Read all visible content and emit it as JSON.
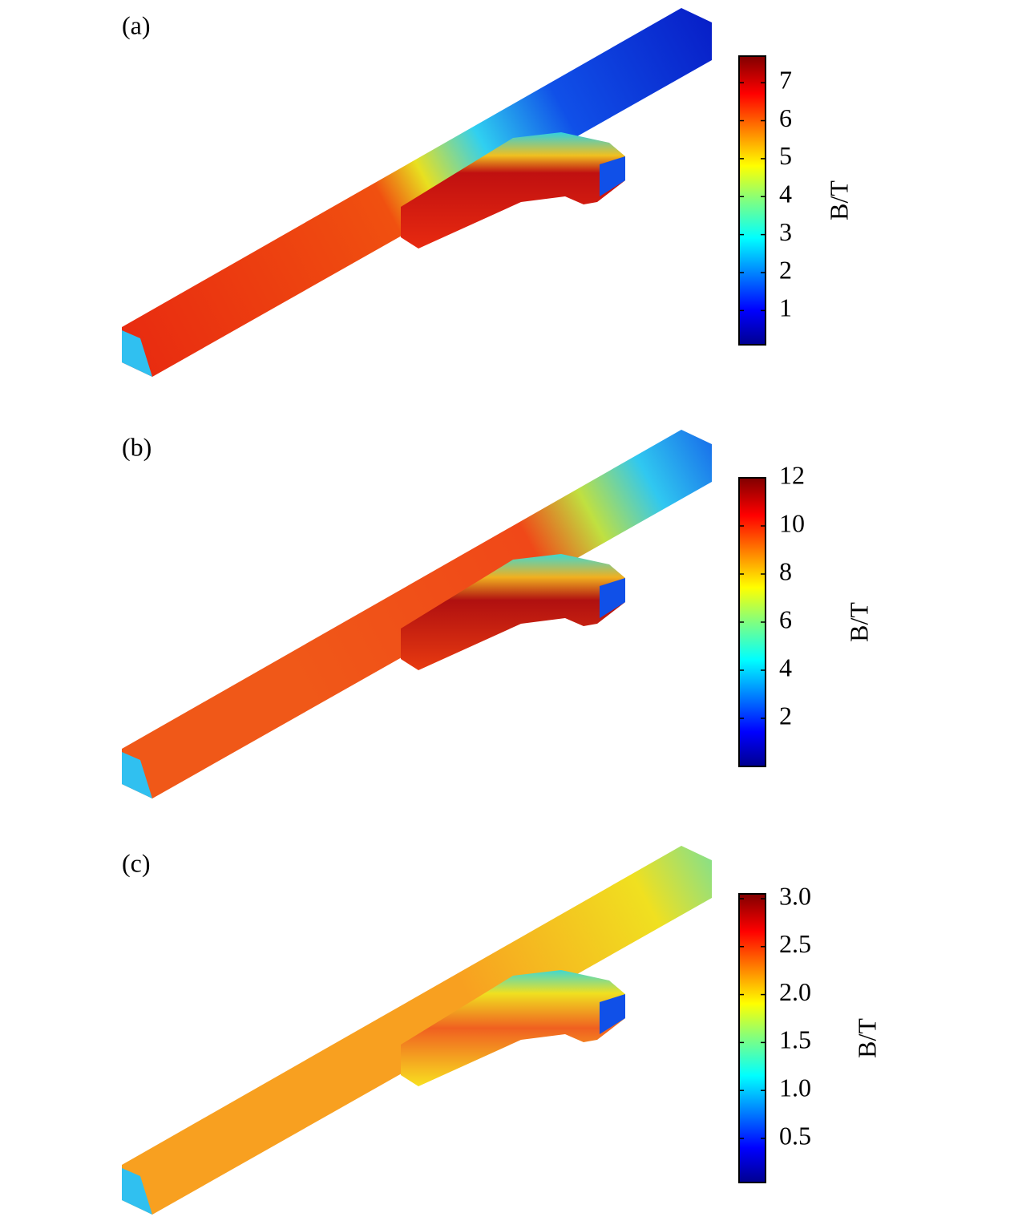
{
  "chart_data": [
    {
      "type": "colormap",
      "panel": "(a)",
      "colorbar_label": "B/T",
      "colormap": "jet",
      "clim": [
        0.1,
        7.7
      ],
      "cticks": [
        1,
        2,
        3,
        4,
        5,
        6,
        7
      ]
    },
    {
      "type": "colormap",
      "panel": "(b)",
      "colorbar_label": "B/T",
      "colormap": "jet",
      "clim": [
        0,
        12
      ],
      "cticks": [
        2,
        4,
        6,
        8,
        10,
        12
      ]
    },
    {
      "type": "colormap",
      "panel": "(c)",
      "colorbar_label": "B/T",
      "colormap": "jet",
      "clim": [
        0.04,
        3.05
      ],
      "cticks": [
        {
          "value": 0.5,
          "label": "0.5"
        },
        {
          "value": 1,
          "label": "1.0"
        },
        {
          "value": 1.5,
          "label": "1.5"
        },
        {
          "value": 2,
          "label": "2.0"
        },
        {
          "value": 2.5,
          "label": "2.5"
        },
        {
          "value": 3,
          "label": "3.0"
        }
      ]
    }
  ]
}
